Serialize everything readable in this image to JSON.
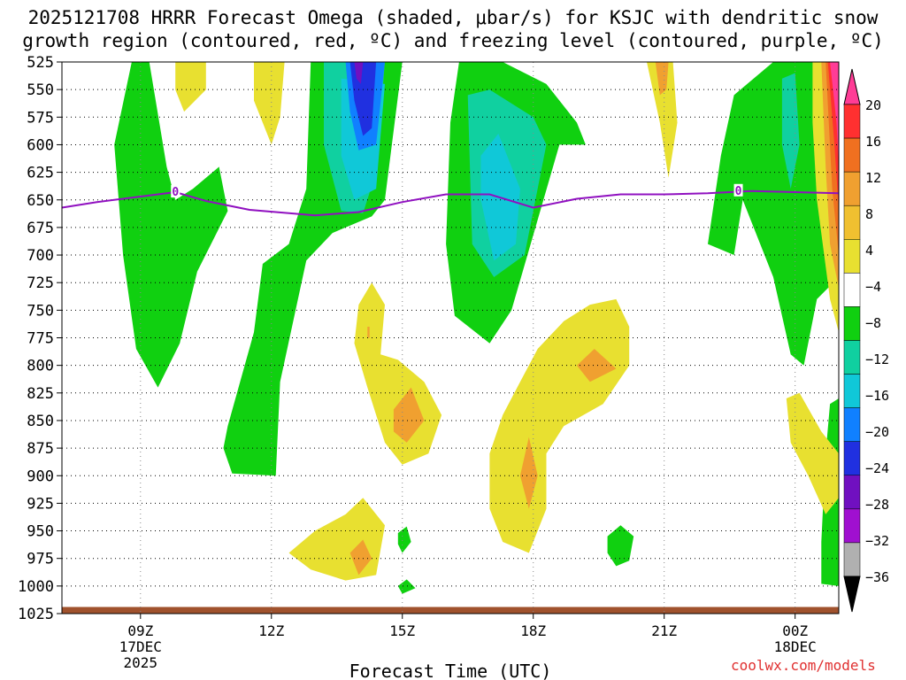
{
  "title": {
    "line1": "2025121708 HRRR Forecast Omega (shaded, μbar/s) for KSJC with dendritic snow",
    "line2": "growth region (contoured, red, ºC) and freezing level (contoured, purple, ºC)"
  },
  "chart_data": {
    "type": "heatmap",
    "title": "2025121708 HRRR Forecast Omega (shaded, μbar/s) for KSJC with dendritic snow growth region (contoured, red, ºC) and freezing level (contoured, purple, ºC)",
    "xlabel": "Forecast Time (UTC)",
    "ylabel": "",
    "x_range_hours": [
      7.2,
      25.0
    ],
    "x_ticks": [
      {
        "hour": 9,
        "label": "09Z",
        "sub1": "17DEC",
        "sub2": "2025"
      },
      {
        "hour": 12,
        "label": "12Z",
        "sub1": "",
        "sub2": ""
      },
      {
        "hour": 15,
        "label": "15Z",
        "sub1": "",
        "sub2": ""
      },
      {
        "hour": 18,
        "label": "18Z",
        "sub1": "",
        "sub2": ""
      },
      {
        "hour": 21,
        "label": "21Z",
        "sub1": "",
        "sub2": ""
      },
      {
        "hour": 24,
        "label": "00Z",
        "sub1": "18DEC",
        "sub2": ""
      }
    ],
    "y_range_hpa": [
      525,
      1025
    ],
    "y_ticks": [
      525,
      550,
      575,
      600,
      625,
      650,
      675,
      700,
      725,
      750,
      775,
      800,
      825,
      850,
      875,
      900,
      925,
      950,
      975,
      1000,
      1025
    ],
    "colorbar": {
      "labels": [
        "20",
        "16",
        "12",
        "8",
        "4",
        "−4",
        "−8",
        "−12",
        "−16",
        "−20",
        "−24",
        "−28",
        "−32",
        "−36"
      ],
      "colors": [
        "#ff3c96",
        "#ff3030",
        "#f07020",
        "#f0a030",
        "#f0c030",
        "#e8e030",
        "#ffffff",
        "#10d010",
        "#10d0a0",
        "#10c8d8",
        "#1080ff",
        "#2030e0",
        "#7010c0",
        "#a010d0",
        "#b0b0b0",
        "#000000"
      ]
    },
    "freezing_level": {
      "label": "0",
      "color": "#9010c0",
      "points": [
        [
          7.2,
          657
        ],
        [
          8.0,
          652
        ],
        [
          9.0,
          647
        ],
        [
          9.8,
          643
        ],
        [
          10.5,
          651
        ],
        [
          11.5,
          659
        ],
        [
          13.0,
          664
        ],
        [
          14.0,
          661
        ],
        [
          15.0,
          652
        ],
        [
          16.0,
          645
        ],
        [
          17.0,
          645
        ],
        [
          18.0,
          657
        ],
        [
          19.0,
          649
        ],
        [
          20.0,
          645
        ],
        [
          21.0,
          645
        ],
        [
          22.0,
          644
        ],
        [
          23.0,
          642
        ],
        [
          24.0,
          643
        ],
        [
          25.0,
          644
        ]
      ]
    },
    "regions": [
      {
        "value": -6,
        "color": "#10d010",
        "points": [
          [
            8.8,
            525
          ],
          [
            9.2,
            525
          ],
          [
            9.6,
            620
          ],
          [
            9.8,
            650
          ],
          [
            10.2,
            640
          ],
          [
            10.8,
            620
          ],
          [
            11.0,
            660
          ],
          [
            10.3,
            715
          ],
          [
            9.9,
            780
          ],
          [
            9.4,
            820
          ],
          [
            8.9,
            785
          ],
          [
            8.6,
            700
          ],
          [
            8.4,
            600
          ]
        ]
      },
      {
        "value": -6,
        "color": "#10d010",
        "points": [
          [
            12.9,
            525
          ],
          [
            15.0,
            525
          ],
          [
            14.6,
            650
          ],
          [
            14.3,
            665
          ],
          [
            13.4,
            680
          ],
          [
            12.8,
            705
          ],
          [
            12.2,
            815
          ],
          [
            12.1,
            900
          ],
          [
            11.1,
            898
          ],
          [
            10.9,
            875
          ],
          [
            11.0,
            855
          ],
          [
            11.6,
            770
          ],
          [
            11.8,
            708
          ],
          [
            12.4,
            690
          ],
          [
            12.8,
            640
          ]
        ]
      },
      {
        "value": -6,
        "color": "#10d010",
        "points": [
          [
            16.3,
            525
          ],
          [
            17.3,
            525
          ],
          [
            18.3,
            545
          ],
          [
            19.0,
            580
          ],
          [
            19.2,
            600
          ],
          [
            18.6,
            600
          ],
          [
            17.5,
            750
          ],
          [
            17.0,
            780
          ],
          [
            16.2,
            755
          ],
          [
            16.0,
            690
          ],
          [
            16.1,
            580
          ]
        ]
      },
      {
        "value": -6,
        "color": "#10d010",
        "points": [
          [
            22.6,
            555
          ],
          [
            23.5,
            525
          ],
          [
            24.5,
            525
          ],
          [
            25.0,
            600
          ],
          [
            25.0,
            720
          ],
          [
            24.5,
            740
          ],
          [
            24.2,
            800
          ],
          [
            23.9,
            790
          ],
          [
            23.5,
            720
          ],
          [
            22.8,
            650
          ],
          [
            22.6,
            700
          ],
          [
            22.0,
            690
          ],
          [
            22.3,
            610
          ]
        ]
      },
      {
        "value": -6,
        "color": "#10d010",
        "points": [
          [
            25.0,
            830
          ],
          [
            24.8,
            835
          ],
          [
            24.7,
            880
          ],
          [
            24.6,
            960
          ],
          [
            24.6,
            998
          ],
          [
            25.0,
            1000
          ]
        ]
      },
      {
        "value": -6,
        "color": "#10d010",
        "points": [
          [
            19.7,
            955
          ],
          [
            20.0,
            945
          ],
          [
            20.3,
            955
          ],
          [
            20.2,
            977
          ],
          [
            19.9,
            982
          ],
          [
            19.7,
            970
          ]
        ]
      },
      {
        "value": -6,
        "color": "#10d010",
        "points": [
          [
            14.9,
            952
          ],
          [
            15.1,
            946
          ],
          [
            15.2,
            960
          ],
          [
            15.0,
            970
          ],
          [
            14.9,
            962
          ]
        ]
      },
      {
        "value": -6,
        "color": "#10d010",
        "points": [
          [
            14.9,
            1000
          ],
          [
            15.1,
            994
          ],
          [
            15.3,
            1002
          ],
          [
            15.0,
            1007
          ]
        ]
      },
      {
        "value": -10,
        "color": "#10d0a0",
        "points": [
          [
            13.2,
            525
          ],
          [
            14.6,
            525
          ],
          [
            14.4,
            625
          ],
          [
            14.1,
            662
          ],
          [
            13.6,
            660
          ],
          [
            13.2,
            600
          ]
        ]
      },
      {
        "value": -10,
        "color": "#10d0a0",
        "points": [
          [
            16.5,
            555
          ],
          [
            17.0,
            550
          ],
          [
            18.0,
            575
          ],
          [
            18.3,
            600
          ],
          [
            17.8,
            700
          ],
          [
            17.1,
            720
          ],
          [
            16.6,
            690
          ]
        ]
      },
      {
        "value": -10,
        "color": "#10d0a0",
        "points": [
          [
            23.7,
            540
          ],
          [
            24.0,
            535
          ],
          [
            24.1,
            600
          ],
          [
            23.9,
            640
          ],
          [
            23.7,
            600
          ]
        ]
      },
      {
        "value": -14,
        "color": "#10c8d8",
        "points": [
          [
            13.6,
            540
          ],
          [
            14.6,
            545
          ],
          [
            14.4,
            640
          ],
          [
            13.9,
            650
          ],
          [
            13.6,
            610
          ]
        ]
      },
      {
        "value": -14,
        "color": "#10c8d8",
        "points": [
          [
            16.8,
            610
          ],
          [
            17.2,
            590
          ],
          [
            17.7,
            640
          ],
          [
            17.6,
            690
          ],
          [
            17.1,
            705
          ],
          [
            16.8,
            650
          ]
        ]
      },
      {
        "value": -14,
        "color": "#10c8d8",
        "points": [
          [
            24.9,
            680
          ],
          [
            25.0,
            690
          ],
          [
            25.0,
            750
          ],
          [
            24.9,
            745
          ]
        ]
      },
      {
        "value": -18,
        "color": "#1080ff",
        "points": [
          [
            13.7,
            525
          ],
          [
            14.6,
            525
          ],
          [
            14.4,
            600
          ],
          [
            14.0,
            605
          ],
          [
            13.8,
            570
          ]
        ]
      },
      {
        "value": -22,
        "color": "#2030e0",
        "points": [
          [
            13.8,
            525
          ],
          [
            14.4,
            525
          ],
          [
            14.3,
            585
          ],
          [
            14.1,
            592
          ],
          [
            13.9,
            560
          ]
        ]
      },
      {
        "value": -26,
        "color": "#7010c0",
        "points": [
          [
            13.9,
            525
          ],
          [
            14.1,
            525
          ],
          [
            14.05,
            545
          ],
          [
            13.95,
            540
          ]
        ]
      },
      {
        "value": 6,
        "color": "#e8e030",
        "points": [
          [
            9.8,
            525
          ],
          [
            10.5,
            525
          ],
          [
            10.5,
            550
          ],
          [
            10.0,
            570
          ],
          [
            9.8,
            550
          ]
        ]
      },
      {
        "value": 6,
        "color": "#e8e030",
        "points": [
          [
            11.6,
            525
          ],
          [
            12.3,
            525
          ],
          [
            12.2,
            575
          ],
          [
            12.0,
            600
          ],
          [
            11.6,
            560
          ]
        ]
      },
      {
        "value": 6,
        "color": "#e8e030",
        "points": [
          [
            20.6,
            525
          ],
          [
            21.2,
            525
          ],
          [
            21.3,
            580
          ],
          [
            21.1,
            630
          ],
          [
            20.9,
            580
          ]
        ]
      },
      {
        "value": 6,
        "color": "#e8e030",
        "points": [
          [
            14.0,
            745
          ],
          [
            14.3,
            725
          ],
          [
            14.6,
            745
          ],
          [
            14.5,
            790
          ],
          [
            14.9,
            795
          ],
          [
            15.5,
            815
          ],
          [
            15.9,
            845
          ],
          [
            15.6,
            880
          ],
          [
            15.0,
            890
          ],
          [
            14.6,
            870
          ],
          [
            14.2,
            820
          ],
          [
            13.9,
            780
          ]
        ]
      },
      {
        "value": 6,
        "color": "#e8e030",
        "points": [
          [
            17.0,
            880
          ],
          [
            17.3,
            845
          ],
          [
            17.7,
            815
          ],
          [
            18.1,
            785
          ],
          [
            18.7,
            760
          ],
          [
            19.3,
            745
          ],
          [
            19.9,
            740
          ],
          [
            20.2,
            765
          ],
          [
            20.2,
            800
          ],
          [
            19.6,
            835
          ],
          [
            18.7,
            855
          ],
          [
            18.3,
            880
          ],
          [
            18.3,
            930
          ],
          [
            17.9,
            970
          ],
          [
            17.3,
            960
          ],
          [
            17.0,
            930
          ]
        ]
      },
      {
        "value": 6,
        "color": "#e8e030",
        "points": [
          [
            12.4,
            970
          ],
          [
            13.0,
            950
          ],
          [
            13.7,
            935
          ],
          [
            14.1,
            920
          ],
          [
            14.6,
            945
          ],
          [
            14.4,
            990
          ],
          [
            13.7,
            995
          ],
          [
            12.9,
            985
          ]
        ]
      },
      {
        "value": 6,
        "color": "#e8e030",
        "points": [
          [
            23.8,
            830
          ],
          [
            24.1,
            825
          ],
          [
            24.6,
            860
          ],
          [
            25.0,
            880
          ],
          [
            25.0,
            920
          ],
          [
            24.7,
            935
          ],
          [
            24.3,
            900
          ],
          [
            23.9,
            870
          ]
        ]
      },
      {
        "value": 6,
        "color": "#e8e030",
        "points": [
          [
            24.4,
            525
          ],
          [
            25.0,
            525
          ],
          [
            25.0,
            770
          ],
          [
            24.8,
            740
          ],
          [
            24.5,
            650
          ],
          [
            24.4,
            580
          ]
        ]
      },
      {
        "value": 10,
        "color": "#f0a030",
        "points": [
          [
            14.2,
            765
          ],
          [
            14.25,
            765
          ],
          [
            14.25,
            775
          ],
          [
            14.2,
            775
          ]
        ]
      },
      {
        "value": 10,
        "color": "#f0a030",
        "points": [
          [
            14.8,
            840
          ],
          [
            15.2,
            820
          ],
          [
            15.5,
            850
          ],
          [
            15.1,
            870
          ],
          [
            14.8,
            860
          ]
        ]
      },
      {
        "value": 10,
        "color": "#f0a030",
        "points": [
          [
            19.0,
            800
          ],
          [
            19.4,
            785
          ],
          [
            19.9,
            803
          ],
          [
            19.3,
            815
          ]
        ]
      },
      {
        "value": 10,
        "color": "#f0a030",
        "points": [
          [
            17.7,
            900
          ],
          [
            17.9,
            865
          ],
          [
            18.1,
            900
          ],
          [
            17.9,
            930
          ]
        ]
      },
      {
        "value": 10,
        "color": "#f0a030",
        "points": [
          [
            13.8,
            970
          ],
          [
            14.1,
            958
          ],
          [
            14.3,
            975
          ],
          [
            14.0,
            990
          ]
        ]
      },
      {
        "value": 10,
        "color": "#f0a030",
        "points": [
          [
            20.8,
            525
          ],
          [
            21.1,
            525
          ],
          [
            21.05,
            550
          ],
          [
            20.9,
            555
          ]
        ]
      },
      {
        "value": 10,
        "color": "#f0a030",
        "points": [
          [
            24.6,
            525
          ],
          [
            25.0,
            525
          ],
          [
            25.0,
            730
          ],
          [
            24.8,
            690
          ],
          [
            24.7,
            620
          ]
        ]
      },
      {
        "value": 14,
        "color": "#f07020",
        "points": [
          [
            24.7,
            525
          ],
          [
            25.0,
            525
          ],
          [
            25.0,
            700
          ],
          [
            24.85,
            640
          ]
        ]
      },
      {
        "value": 18,
        "color": "#ff3030",
        "points": [
          [
            24.75,
            525
          ],
          [
            25.0,
            525
          ],
          [
            25.0,
            660
          ],
          [
            24.9,
            600
          ]
        ]
      },
      {
        "value": 22,
        "color": "#ff3c96",
        "points": [
          [
            24.8,
            525
          ],
          [
            25.0,
            525
          ],
          [
            25.0,
            620
          ],
          [
            24.95,
            580
          ]
        ]
      }
    ],
    "terrain": {
      "color": "#a0522d",
      "top_hpa": 1019
    }
  },
  "credit": "coolwx.com/models"
}
